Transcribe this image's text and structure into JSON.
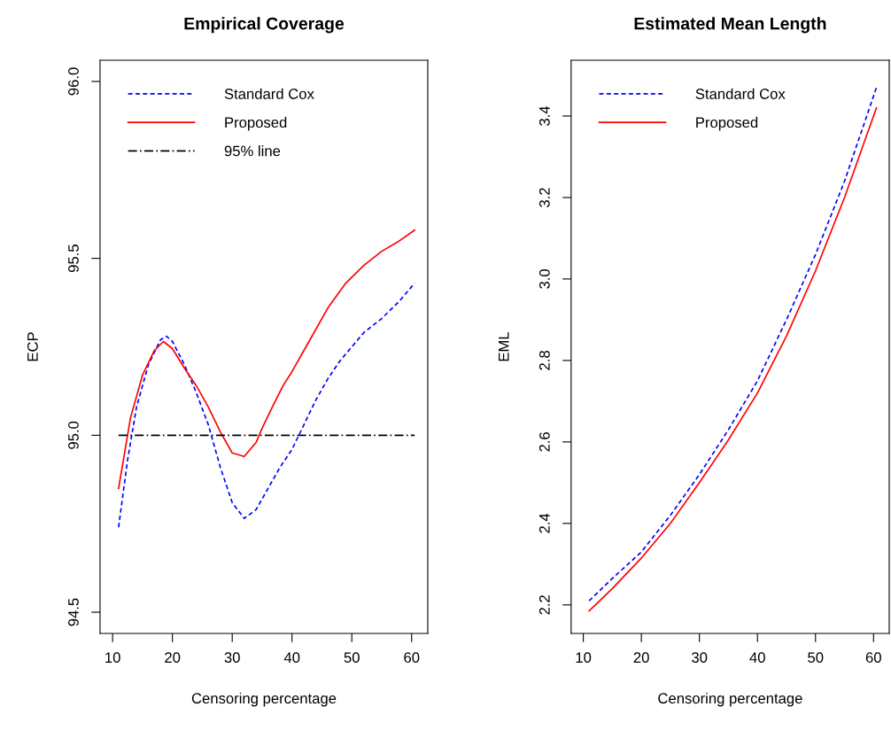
{
  "chart_data": [
    {
      "type": "line",
      "title": "Empirical Coverage",
      "xlabel": "Censoring percentage",
      "ylabel": "ECP",
      "xlim": [
        7.9,
        62.7
      ],
      "ylim": [
        94.44,
        96.06
      ],
      "xticks": [
        10,
        20,
        30,
        40,
        50,
        60
      ],
      "yticks": [
        {
          "value": 94.5,
          "label": "94.5"
        },
        {
          "value": 95,
          "label": "95.0"
        },
        {
          "value": 95.5,
          "label": "95.5"
        },
        {
          "value": 96,
          "label": "96.0"
        }
      ],
      "grid": false,
      "legend": "top left",
      "series": [
        {
          "name": "Standard Cox",
          "color": "#0000ff",
          "line_style": "dashed",
          "x": [
            11,
            12.5,
            14,
            16,
            18,
            19,
            20,
            22,
            24,
            26,
            28,
            30,
            32,
            34,
            36,
            38,
            40,
            42,
            44,
            46,
            48,
            50,
            52,
            55,
            58,
            60.5
          ],
          "values": [
            94.74,
            94.93,
            95.08,
            95.2,
            95.27,
            95.28,
            95.265,
            95.2,
            95.12,
            95.03,
            94.91,
            94.81,
            94.765,
            94.79,
            94.85,
            94.91,
            94.96,
            95.03,
            95.1,
            95.16,
            95.21,
            95.25,
            95.29,
            95.33,
            95.38,
            95.43
          ]
        },
        {
          "name": "Proposed",
          "color": "#ff0000",
          "line_style": "solid",
          "x": [
            11,
            13,
            15,
            17,
            18.5,
            20,
            22,
            24,
            26,
            28,
            30,
            32,
            34,
            35,
            37,
            38.5,
            40,
            43,
            46,
            49,
            52,
            55,
            58,
            60.5
          ],
          "values": [
            94.85,
            95.05,
            95.17,
            95.24,
            95.265,
            95.245,
            95.19,
            95.14,
            95.08,
            95.01,
            94.95,
            94.94,
            94.98,
            95.02,
            95.09,
            95.14,
            95.18,
            95.27,
            95.36,
            95.43,
            95.48,
            95.52,
            95.55,
            95.58
          ]
        },
        {
          "name": "95% line",
          "color": "#000000",
          "line_style": "dashdot",
          "x": [
            11,
            60.5
          ],
          "values": [
            95,
            95
          ]
        }
      ]
    },
    {
      "type": "line",
      "title": "Estimated Mean Length",
      "xlabel": "Censoring percentage",
      "ylabel": "EML",
      "xlim": [
        7.9,
        62.7
      ],
      "ylim": [
        2.13,
        3.537
      ],
      "xticks": [
        10,
        20,
        30,
        40,
        50,
        60
      ],
      "yticks": [
        {
          "value": 2.2,
          "label": "2.2"
        },
        {
          "value": 2.4,
          "label": "2.4"
        },
        {
          "value": 2.6,
          "label": "2.6"
        },
        {
          "value": 2.8,
          "label": "2.8"
        },
        {
          "value": 3.0,
          "label": "3.0"
        },
        {
          "value": 3.2,
          "label": "3.2"
        },
        {
          "value": 3.4,
          "label": "3.4"
        }
      ],
      "grid": false,
      "legend": "top left",
      "series": [
        {
          "name": "Standard Cox",
          "color": "#0000ff",
          "line_style": "dashed",
          "x": [
            11,
            15,
            20,
            25,
            30,
            35,
            40,
            45,
            50,
            55,
            60.5
          ],
          "values": [
            2.21,
            2.265,
            2.33,
            2.42,
            2.52,
            2.63,
            2.75,
            2.9,
            3.06,
            3.24,
            3.47
          ]
        },
        {
          "name": "Proposed",
          "color": "#ff0000",
          "line_style": "solid",
          "x": [
            11,
            15,
            20,
            25,
            30,
            35,
            40,
            45,
            50,
            55,
            60.5
          ],
          "values": [
            2.185,
            2.24,
            2.315,
            2.4,
            2.5,
            2.605,
            2.72,
            2.86,
            3.02,
            3.2,
            3.42
          ]
        }
      ]
    }
  ]
}
